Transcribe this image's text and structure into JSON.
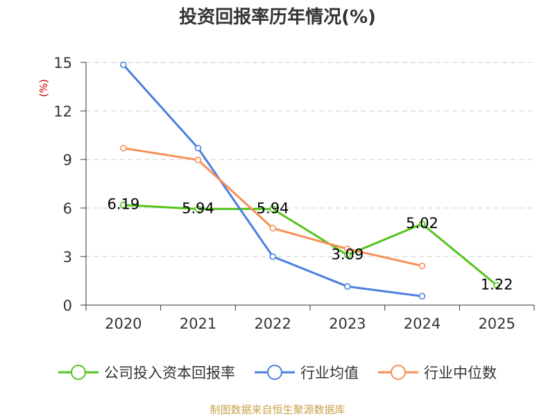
{
  "chart_data": {
    "type": "line",
    "title": "投资回报率历年情况(%)",
    "ylabel": "(%)",
    "categories": [
      "2020",
      "2021",
      "2022",
      "2023",
      "2024",
      "2025"
    ],
    "y_ticks": [
      0,
      3,
      6,
      9,
      12,
      15
    ],
    "ylim": [
      0,
      15
    ],
    "grid": true,
    "series": [
      {
        "name": "公司投入资本回报率",
        "color": "#52c41a",
        "values": [
          6.19,
          5.94,
          5.94,
          3.09,
          5.02,
          1.22
        ],
        "labels": [
          "6.19",
          "5.94",
          "5.94",
          "3.09",
          "5.02",
          "1.22"
        ],
        "show_labels": true
      },
      {
        "name": "行业均值",
        "color": "#4a7fe0",
        "values": [
          14.85,
          9.7,
          3.0,
          1.15,
          0.55,
          null
        ],
        "show_labels": false
      },
      {
        "name": "行业中位数",
        "color": "#f88e56",
        "values": [
          9.7,
          8.97,
          4.75,
          3.47,
          2.42,
          null
        ],
        "show_labels": false
      }
    ],
    "legend_position": "bottom"
  },
  "source_text": "制图数据来自恒生聚源数据库",
  "colors": {
    "grid": "#cccccc",
    "axis": "#333333",
    "unit": "#cc0000",
    "source": "#c8a24a"
  }
}
